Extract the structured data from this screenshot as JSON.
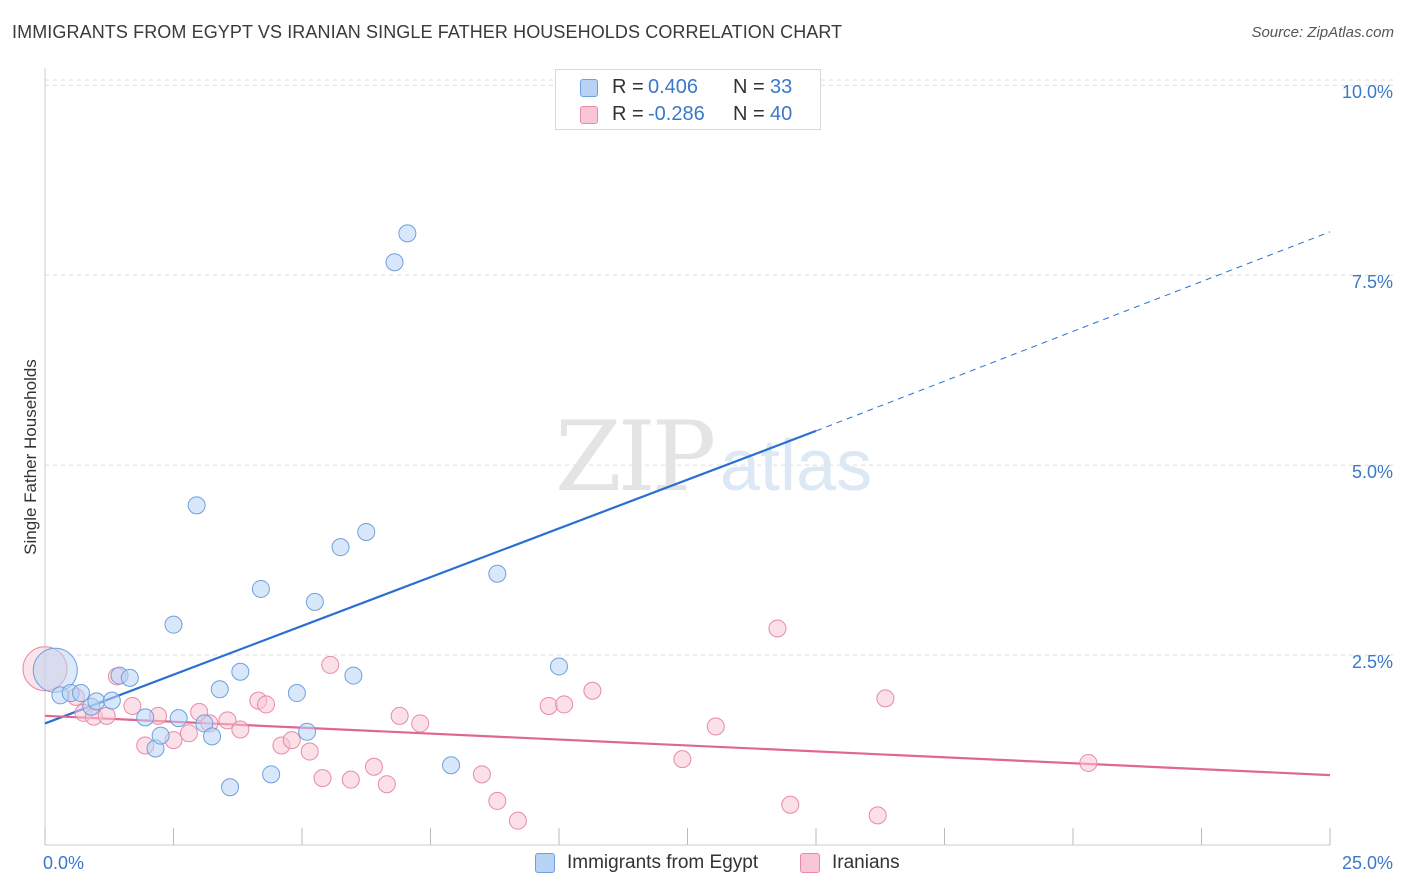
{
  "header": {
    "title": "IMMIGRANTS FROM EGYPT VS IRANIAN SINGLE FATHER HOUSEHOLDS CORRELATION CHART",
    "source": "Source: ZipAtlas.com"
  },
  "watermark": {
    "zip": "ZIP",
    "atlas": "atlas"
  },
  "legend_top": {
    "rows": [
      {
        "r_label": "R =",
        "r_value": "0.406",
        "n_label": "N =",
        "n_value": "33"
      },
      {
        "r_label": "R =",
        "r_value": "-0.286",
        "n_label": "N =",
        "n_value": "40"
      }
    ]
  },
  "legend_bottom": {
    "items": [
      "Immigrants from Egypt",
      "Iranians"
    ]
  },
  "colors": {
    "blue_fill": "#b8d3f4",
    "blue_stroke": "#6fa0de",
    "blue_line": "#2a6fd1",
    "pink_fill": "#f8c7d6",
    "pink_stroke": "#e88aa8",
    "pink_line": "#e0678f",
    "tick_label": "#3b78c9",
    "grid": "#dddddd"
  },
  "chart_data": {
    "type": "scatter",
    "title": "IMMIGRANTS FROM EGYPT VS IRANIAN SINGLE FATHER HOUSEHOLDS CORRELATION CHART",
    "xlabel": "",
    "ylabel": "Single Father Households",
    "xlim": [
      0,
      25
    ],
    "ylim": [
      0,
      10.2
    ],
    "x_tick_labels": [
      "0.0%",
      "25.0%"
    ],
    "y_ticks": [
      2.5,
      5.0,
      7.5,
      10.0
    ],
    "y_tick_labels": [
      "2.5%",
      "5.0%",
      "7.5%",
      "10.0%"
    ],
    "grid": true,
    "legend_position": "bottom",
    "series": [
      {
        "name": "Immigrants from Egypt",
        "color": "#6fa0de",
        "points": [
          {
            "x": 0.2,
            "y": 2.3,
            "big": true
          },
          {
            "x": 0.3,
            "y": 1.97
          },
          {
            "x": 0.5,
            "y": 2.0
          },
          {
            "x": 0.7,
            "y": 2.0
          },
          {
            "x": 0.9,
            "y": 1.82
          },
          {
            "x": 1.0,
            "y": 1.89
          },
          {
            "x": 1.3,
            "y": 1.9
          },
          {
            "x": 1.45,
            "y": 2.23
          },
          {
            "x": 1.65,
            "y": 2.2
          },
          {
            "x": 1.95,
            "y": 1.68
          },
          {
            "x": 2.15,
            "y": 1.27
          },
          {
            "x": 2.25,
            "y": 1.44
          },
          {
            "x": 2.5,
            "y": 2.9
          },
          {
            "x": 2.6,
            "y": 1.67
          },
          {
            "x": 2.95,
            "y": 4.47
          },
          {
            "x": 3.1,
            "y": 1.6
          },
          {
            "x": 3.25,
            "y": 1.43
          },
          {
            "x": 3.4,
            "y": 2.05
          },
          {
            "x": 3.6,
            "y": 0.76
          },
          {
            "x": 3.8,
            "y": 2.28
          },
          {
            "x": 4.2,
            "y": 3.37
          },
          {
            "x": 4.4,
            "y": 0.93
          },
          {
            "x": 4.9,
            "y": 2.0
          },
          {
            "x": 5.1,
            "y": 1.49
          },
          {
            "x": 5.25,
            "y": 3.2
          },
          {
            "x": 5.75,
            "y": 3.92
          },
          {
            "x": 6.0,
            "y": 2.23
          },
          {
            "x": 6.25,
            "y": 4.12
          },
          {
            "x": 6.8,
            "y": 7.67
          },
          {
            "x": 7.05,
            "y": 8.05
          },
          {
            "x": 7.9,
            "y": 1.05
          },
          {
            "x": 8.8,
            "y": 3.57
          },
          {
            "x": 10.0,
            "y": 2.35
          }
        ],
        "trend": {
          "x0": 0,
          "y0": 1.6,
          "x1": 15.0,
          "y1": 5.45,
          "dash_x1": 25.0,
          "dash_y1": 8.07
        }
      },
      {
        "name": "Iranians",
        "color": "#e88aa8",
        "points": [
          {
            "x": 0.6,
            "y": 1.95
          },
          {
            "x": 0.75,
            "y": 1.74
          },
          {
            "x": 0.95,
            "y": 1.69
          },
          {
            "x": 1.2,
            "y": 1.7
          },
          {
            "x": 1.4,
            "y": 2.22
          },
          {
            "x": 1.7,
            "y": 1.83
          },
          {
            "x": 1.95,
            "y": 1.31
          },
          {
            "x": 2.2,
            "y": 1.7
          },
          {
            "x": 2.5,
            "y": 1.38
          },
          {
            "x": 2.8,
            "y": 1.47
          },
          {
            "x": 3.0,
            "y": 1.75
          },
          {
            "x": 3.2,
            "y": 1.6
          },
          {
            "x": 3.55,
            "y": 1.64
          },
          {
            "x": 3.8,
            "y": 1.52
          },
          {
            "x": 4.15,
            "y": 1.9
          },
          {
            "x": 4.3,
            "y": 1.85
          },
          {
            "x": 4.6,
            "y": 1.31
          },
          {
            "x": 4.8,
            "y": 1.38
          },
          {
            "x": 5.15,
            "y": 1.23
          },
          {
            "x": 5.4,
            "y": 0.88
          },
          {
            "x": 5.55,
            "y": 2.37
          },
          {
            "x": 5.95,
            "y": 0.86
          },
          {
            "x": 6.4,
            "y": 1.03
          },
          {
            "x": 6.65,
            "y": 0.8
          },
          {
            "x": 6.9,
            "y": 1.7
          },
          {
            "x": 7.3,
            "y": 1.6
          },
          {
            "x": 8.5,
            "y": 0.93
          },
          {
            "x": 8.8,
            "y": 0.58
          },
          {
            "x": 9.2,
            "y": 0.32
          },
          {
            "x": 9.8,
            "y": 1.83
          },
          {
            "x": 10.1,
            "y": 1.85
          },
          {
            "x": 10.65,
            "y": 2.03
          },
          {
            "x": 12.4,
            "y": 1.13
          },
          {
            "x": 13.05,
            "y": 1.56
          },
          {
            "x": 14.25,
            "y": 2.85
          },
          {
            "x": 14.5,
            "y": 0.53
          },
          {
            "x": 16.2,
            "y": 0.39
          },
          {
            "x": 16.35,
            "y": 1.93
          },
          {
            "x": 20.3,
            "y": 1.08
          },
          {
            "x": 0.0,
            "y": 2.32,
            "big": true
          }
        ],
        "trend": {
          "x0": 0,
          "y0": 1.7,
          "x1": 25.0,
          "y1": 0.92
        }
      }
    ]
  }
}
